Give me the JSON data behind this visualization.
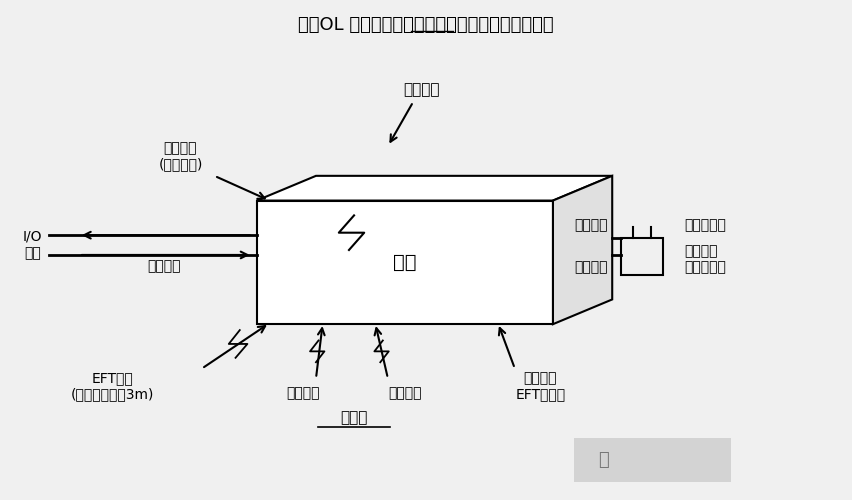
{
  "title": "奇遇OL 电脑版下载推荐：好用的电脑版模拟器下载",
  "bg_color": "#f0f0f0",
  "product_label": "产品",
  "labels": {
    "rf_radiation_top": "射频辐射",
    "rf_conduct_topleft": "射频传导\n(通信端口)",
    "io_port": "I/O\n端口",
    "rf_conduct_left": "射频传导",
    "rf_conduct_right_top": "射频传导",
    "rf_conduct_right_bot": "射频传导",
    "harmonics": "谐波和闪烁",
    "ac_voltage": "交流电压\n跌落和中断",
    "eft": "EFT瞬态\n(如果电缆超过3m)",
    "rf_radiation_bot": "射频辐射",
    "esd": "静电放电",
    "sensitivity": "敏感度",
    "high_voltage": "高压瞬态\nEFT和浪涌"
  }
}
